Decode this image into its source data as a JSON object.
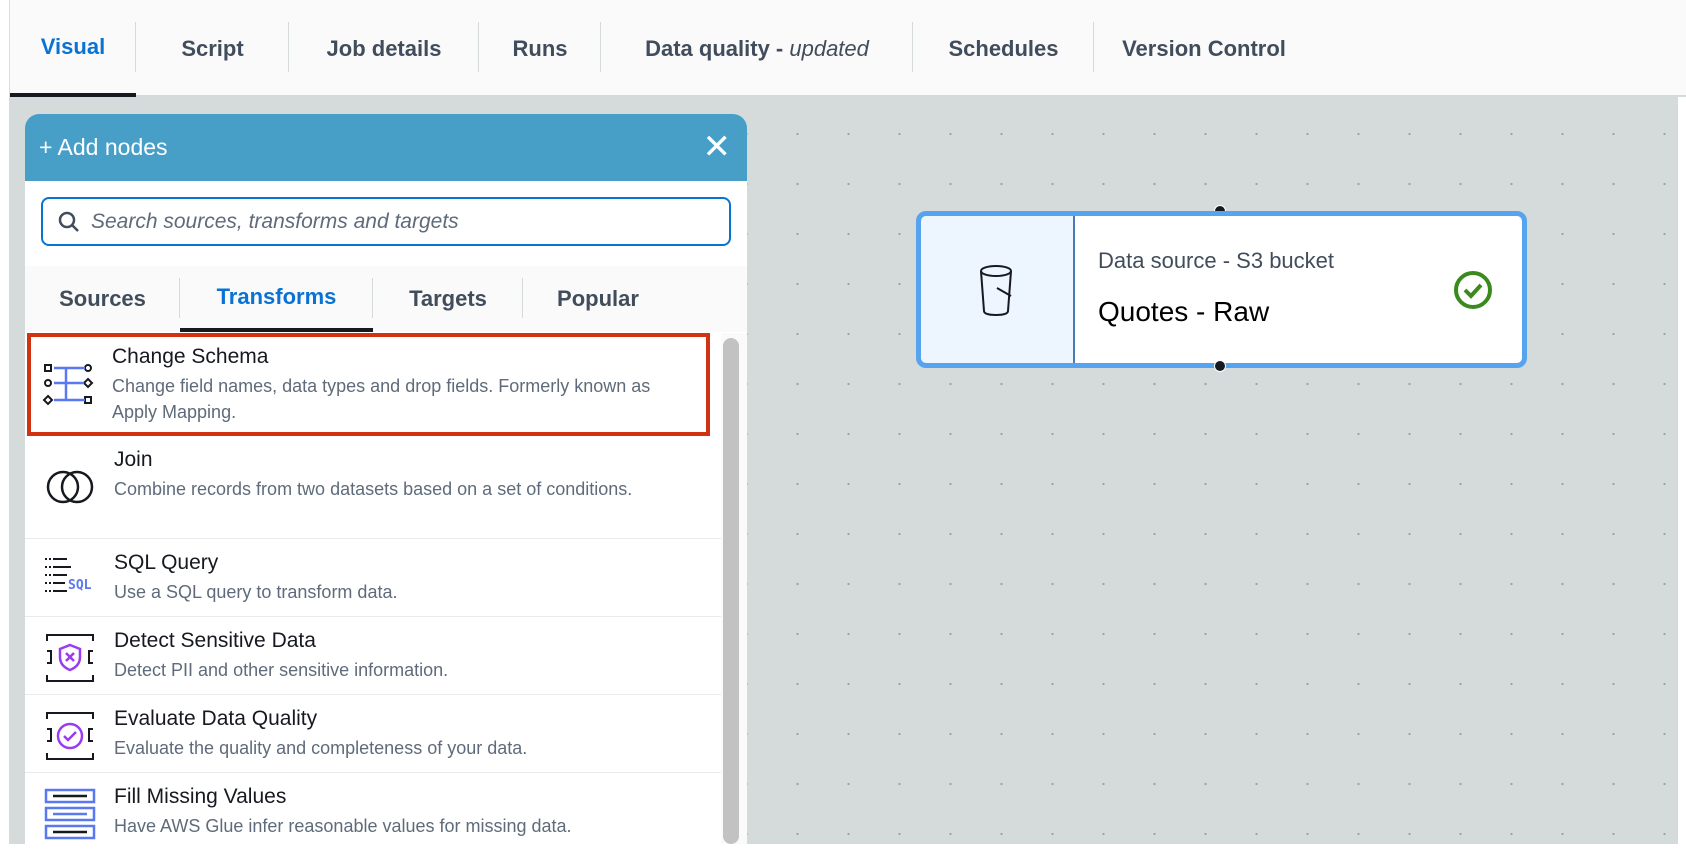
{
  "tabs": [
    {
      "label": "Visual",
      "active": true
    },
    {
      "label": "Script"
    },
    {
      "label": "Job details"
    },
    {
      "label": "Runs"
    },
    {
      "label": "Data quality - ",
      "suffix": "updated"
    },
    {
      "label": "Schedules"
    },
    {
      "label": "Version Control"
    }
  ],
  "panel": {
    "title": "+ Add nodes",
    "close_icon": "close-icon",
    "search_placeholder": "Search sources, transforms and targets",
    "tabs": [
      {
        "label": "Sources"
      },
      {
        "label": "Transforms",
        "active": true
      },
      {
        "label": "Targets"
      },
      {
        "label": "Popular"
      }
    ],
    "items": [
      {
        "title": "Change Schema",
        "desc": "Change field names, data types and drop fields. Formerly known as Apply Mapping.",
        "highlighted": true,
        "icon": "change-schema-icon"
      },
      {
        "title": "Join",
        "desc": "Combine records from two datasets based on a set of conditions.",
        "icon": "join-icon"
      },
      {
        "title": "SQL Query",
        "desc": "Use a SQL query to transform data.",
        "icon": "sql-icon",
        "icon_text": "SQL"
      },
      {
        "title": "Detect Sensitive Data",
        "desc": "Detect PII and other sensitive information.",
        "icon": "detect-sensitive-icon"
      },
      {
        "title": "Evaluate Data Quality",
        "desc": "Evaluate the quality and completeness of your data.",
        "icon": "data-quality-icon"
      },
      {
        "title": "Fill Missing Values",
        "desc": "Have AWS Glue infer reasonable values for missing data.",
        "icon": "fill-missing-icon"
      }
    ]
  },
  "node": {
    "subtitle": "Data source - S3 bucket",
    "title": "Quotes - Raw",
    "status": "valid",
    "icon": "s3-bucket-icon"
  },
  "colors": {
    "accent": "#0972d3",
    "header": "#479fc8",
    "highlight": "#d13212",
    "success": "#3b8a1e",
    "icon_purple": "#9b3bf0",
    "icon_blue": "#5a78f0"
  }
}
